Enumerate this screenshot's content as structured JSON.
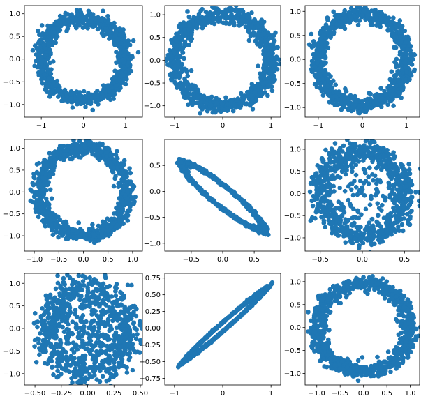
{
  "marker_color": "#1f77b4",
  "chart_data": [
    {
      "type": "scatter",
      "shape": "ring",
      "xlim": [
        -1.4,
        1.4
      ],
      "ylim": [
        -1.28,
        1.18
      ],
      "xticks": [
        -1,
        0,
        1
      ],
      "xtick_labels": [
        "−1",
        "0",
        "1"
      ],
      "yticks": [
        1.0,
        0.5,
        0.0,
        -0.5,
        -1.0
      ],
      "ytick_labels": [
        "1.0",
        "0.5",
        "0.0",
        "−0.5",
        "−1.0"
      ],
      "center": [
        0,
        0
      ],
      "axis_u": [
        1.0,
        0.0
      ],
      "axis_v": [
        0.0,
        0.9
      ],
      "thickness": 0.2,
      "inner_fill": 0.0,
      "seed": 11
    },
    {
      "type": "scatter",
      "shape": "ring",
      "xlim": [
        -1.2,
        1.2
      ],
      "ylim": [
        -1.25,
        1.2
      ],
      "xticks": [
        -1,
        0,
        1
      ],
      "xtick_labels": [
        "−1",
        "0",
        "1"
      ],
      "yticks": [
        1.0,
        0.5,
        0.0,
        -0.5,
        -1.0
      ],
      "ytick_labels": [
        "1.0",
        "0.5",
        "0.0",
        "−0.5",
        "−1.0"
      ],
      "center": [
        0,
        0
      ],
      "axis_u": [
        1.0,
        0.0
      ],
      "axis_v": [
        0.0,
        1.0
      ],
      "thickness": 0.2,
      "inner_fill": 0.0,
      "seed": 22
    },
    {
      "type": "scatter",
      "shape": "ring",
      "xlim": [
        -1.3,
        1.3
      ],
      "ylim": [
        -1.2,
        1.12
      ],
      "xticks": [
        -1,
        0,
        1
      ],
      "xtick_labels": [
        "−1",
        "0",
        "1"
      ],
      "yticks": [
        1.0,
        0.5,
        0.0,
        -0.5,
        -1.0
      ],
      "ytick_labels": [
        "1.0",
        "0.5",
        "0.0",
        "−0.5",
        "−1.0"
      ],
      "center": [
        0,
        0
      ],
      "axis_u": [
        1.0,
        0.0
      ],
      "axis_v": [
        0.0,
        0.95
      ],
      "thickness": 0.2,
      "inner_fill": 0.0,
      "seed": 33
    },
    {
      "type": "scatter",
      "shape": "ring",
      "xlim": [
        -1.2,
        1.2
      ],
      "ylim": [
        -1.35,
        1.2
      ],
      "xticks": [
        -1.0,
        -0.5,
        0.0,
        0.5,
        1.0
      ],
      "xtick_labels": [
        "−1.0",
        "−0.5",
        "0.0",
        "0.5",
        "1.0"
      ],
      "yticks": [
        1.0,
        0.5,
        0.0,
        -0.5,
        -1.0
      ],
      "ytick_labels": [
        "1.0",
        "0.5",
        "0.0",
        "−0.5",
        "−1.0"
      ],
      "center": [
        0,
        0
      ],
      "axis_u": [
        0.88,
        0.0
      ],
      "axis_v": [
        0.0,
        1.0
      ],
      "thickness": 0.2,
      "inner_fill": 0.0,
      "seed": 44
    },
    {
      "type": "scatter",
      "shape": "ring",
      "xlim": [
        -0.92,
        0.92
      ],
      "ylim": [
        -1.15,
        1.0
      ],
      "xticks": [
        -0.5,
        0.0,
        0.5
      ],
      "xtick_labels": [
        "−0.5",
        "0.0",
        "0.5"
      ],
      "yticks": [
        0.5,
        0.0,
        -0.5,
        -1.0
      ],
      "ytick_labels": [
        "0.5",
        "0.0",
        "−0.5",
        "−1.0"
      ],
      "center": [
        0,
        -0.1
      ],
      "axis_u": [
        0.63,
        -0.63
      ],
      "axis_v": [
        0.12,
        0.12
      ],
      "thickness": 0.12,
      "inner_fill": 0.0,
      "seed": 55
    },
    {
      "type": "scatter",
      "shape": "ring",
      "xlim": [
        -0.68,
        0.68
      ],
      "ylim": [
        -1.3,
        1.22
      ],
      "xticks": [
        -0.5,
        0.0,
        0.5
      ],
      "xtick_labels": [
        "−0.5",
        "0.0",
        "0.5"
      ],
      "yticks": [
        1.0,
        0.5,
        0.0,
        -0.5,
        -1.0
      ],
      "ytick_labels": [
        "1.0",
        "0.5",
        "0.0",
        "−0.5",
        "−1.0"
      ],
      "center": [
        0,
        0
      ],
      "axis_u": [
        0.52,
        0.0
      ],
      "axis_v": [
        0.0,
        0.95
      ],
      "thickness": 0.3,
      "inner_fill": 0.15,
      "seed": 66
    },
    {
      "type": "scatter",
      "shape": "ring",
      "xlim": [
        -0.6,
        0.52
      ],
      "ylim": [
        -1.25,
        1.22
      ],
      "xticks": [
        -0.5,
        -0.25,
        0.0,
        0.25,
        0.5
      ],
      "xtick_labels": [
        "−0.50",
        "−0.25",
        "0.00",
        "0.25",
        "0.50"
      ],
      "yticks": [
        1.0,
        0.5,
        0.0,
        -0.5,
        -1.0
      ],
      "ytick_labels": [
        "1.0",
        "0.5",
        "0.0",
        "−0.5",
        "−1.0"
      ],
      "center": [
        0,
        -0.05
      ],
      "axis_u": [
        0.4,
        0.0
      ],
      "axis_v": [
        0.0,
        1.0
      ],
      "thickness": 0.38,
      "inner_fill": 0.35,
      "seed": 77
    },
    {
      "type": "scatter",
      "shape": "ring",
      "xlim": [
        -1.2,
        1.2
      ],
      "ylim": [
        -0.85,
        0.82
      ],
      "xticks": [
        -1,
        0,
        1
      ],
      "xtick_labels": [
        "−1",
        "0",
        "1"
      ],
      "yticks": [
        0.75,
        0.5,
        0.25,
        0.0,
        -0.25,
        -0.5,
        -0.75
      ],
      "ytick_labels": [
        "0.75",
        "0.50",
        "0.25",
        "0.00",
        "−0.25",
        "−0.50",
        "−0.75"
      ],
      "center": [
        0.05,
        0.05
      ],
      "axis_u": [
        0.82,
        0.52
      ],
      "axis_v": [
        -0.03,
        0.05
      ],
      "thickness": 0.16,
      "inner_fill": 0.0,
      "seed": 88
    },
    {
      "type": "scatter",
      "shape": "ring",
      "xlim": [
        -1.25,
        1.2
      ],
      "ylim": [
        -1.25,
        1.18
      ],
      "xticks": [
        -1.0,
        -0.5,
        0.0,
        0.5,
        1.0
      ],
      "xtick_labels": [
        "−1.0",
        "−0.5",
        "0.0",
        "0.5",
        "1.0"
      ],
      "yticks": [
        1.0,
        0.5,
        0.0,
        -0.5,
        -1.0
      ],
      "ytick_labels": [
        "1.0",
        "0.5",
        "0.0",
        "−0.5",
        "−1.0"
      ],
      "center": [
        0,
        0
      ],
      "axis_u": [
        1.0,
        0.0
      ],
      "axis_v": [
        0.0,
        0.95
      ],
      "thickness": 0.2,
      "inner_fill": 0.0,
      "seed": 99
    }
  ]
}
